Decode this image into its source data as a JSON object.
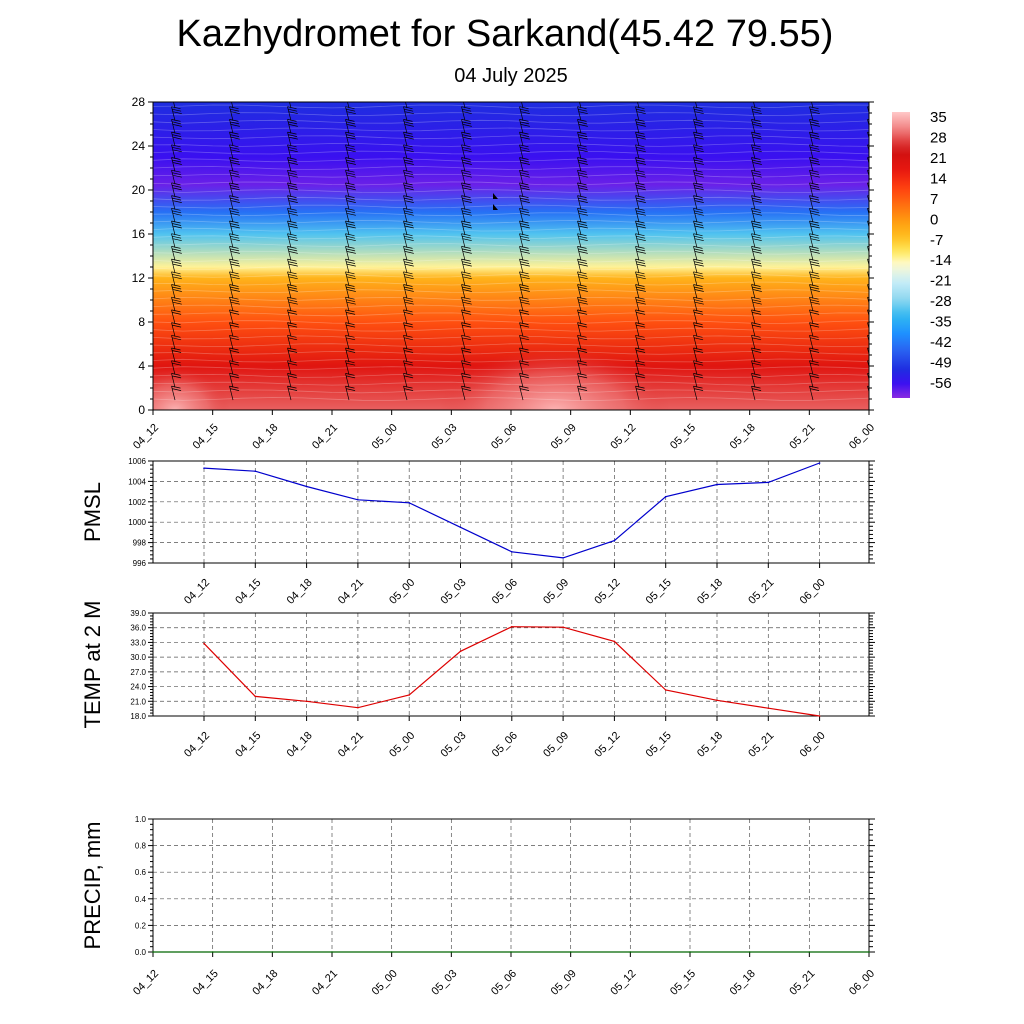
{
  "title": "Kazhydromet for Sarkand(45.42 79.55)",
  "subtitle": "04 July 2025",
  "chart_data": [
    {
      "type": "heatmap",
      "title": "",
      "xlabel": "",
      "ylabel": "",
      "x_tick_labels": [
        "04_12",
        "04_15",
        "04_18",
        "04_21",
        "05_00",
        "05_03",
        "05_06",
        "05_09",
        "05_12",
        "05_15",
        "05_18",
        "05_21",
        "06_00"
      ],
      "y_tick_labels": [
        "0",
        "4",
        "8",
        "12",
        "16",
        "20",
        "24",
        "28"
      ],
      "ylim": [
        0,
        28
      ],
      "colorbar_labels": [
        "35",
        "28",
        "21",
        "14",
        "7",
        "0",
        "-7",
        "-14",
        "-21",
        "-28",
        "-35",
        "-42",
        "-49",
        "-56"
      ],
      "colorbar_range": [
        -60,
        38
      ],
      "value_by_level": [
        {
          "level": 0,
          "value": 30
        },
        {
          "level": 4,
          "value": 20
        },
        {
          "level": 8,
          "value": 10
        },
        {
          "level": 12,
          "value": -3
        },
        {
          "level": 13,
          "value": -12
        },
        {
          "level": 16,
          "value": -30
        },
        {
          "level": 18,
          "value": -42
        },
        {
          "level": 20.5,
          "value": -58
        },
        {
          "level": 23,
          "value": -55
        },
        {
          "level": 28,
          "value": -50
        }
      ],
      "overlay": "wind barbs"
    },
    {
      "type": "line",
      "ylabel": "PMSL",
      "x": [
        "04_12",
        "04_15",
        "04_18",
        "04_21",
        "05_00",
        "05_03",
        "05_06",
        "05_09",
        "05_12",
        "05_15",
        "05_18",
        "05_21",
        "06_00"
      ],
      "y_tick_labels": [
        "996",
        "998",
        "1000",
        "1002",
        "1004",
        "1006"
      ],
      "ylim": [
        996,
        1006
      ],
      "series": [
        {
          "values": [
            1005.3,
            1005.0,
            1003.5,
            1002.2,
            1001.9,
            999.5,
            997.1,
            996.5,
            998.2,
            1002.5,
            1003.7,
            1003.9,
            1005.8
          ],
          "color": "#0000cc"
        }
      ],
      "grid": true
    },
    {
      "type": "line",
      "ylabel": "TEMP at 2 M",
      "x": [
        "04_12",
        "04_15",
        "04_18",
        "04_21",
        "05_00",
        "05_03",
        "05_06",
        "05_09",
        "05_12",
        "05_15",
        "05_18",
        "05_21",
        "06_00"
      ],
      "y_tick_labels": [
        "18.0",
        "21.0",
        "24.0",
        "27.0",
        "30.0",
        "33.0",
        "36.0",
        "39.0"
      ],
      "ylim": [
        18,
        39
      ],
      "series": [
        {
          "values": [
            32.8,
            22.0,
            21.0,
            19.7,
            22.3,
            31.2,
            36.2,
            36.1,
            33.2,
            23.3,
            21.2,
            19.6,
            18.0
          ],
          "color": "#dd0000"
        }
      ],
      "grid": true
    },
    {
      "type": "line",
      "ylabel": "PRECIP, mm",
      "x": [
        "04_12",
        "04_15",
        "04_18",
        "04_21",
        "05_00",
        "05_03",
        "05_06",
        "05_09",
        "05_12",
        "05_15",
        "05_18",
        "05_21",
        "06_00"
      ],
      "y_tick_labels": [
        "0.0",
        "0.2",
        "0.4",
        "0.6",
        "0.8",
        "1.0"
      ],
      "ylim": [
        0,
        1
      ],
      "series": [
        {
          "values": [
            0,
            0,
            0,
            0,
            0,
            0,
            0,
            0,
            0,
            0,
            0,
            0,
            0
          ],
          "color": "#006600"
        }
      ],
      "grid": true
    }
  ]
}
